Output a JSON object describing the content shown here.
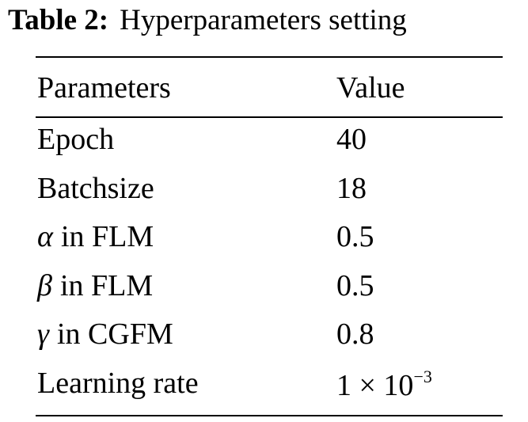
{
  "caption": {
    "label": "Table 2:",
    "text": "Hyperparameters setting"
  },
  "table": {
    "header": [
      "Parameters",
      "Value"
    ],
    "rows": [
      [
        {
          "text": "Epoch"
        },
        "40"
      ],
      [
        {
          "text": "Batchsize"
        },
        "18"
      ],
      [
        {
          "symbol": "α",
          "text": "in FLM"
        },
        "0.5"
      ],
      [
        {
          "symbol": "β",
          "text": "in FLM"
        },
        "0.5"
      ],
      [
        {
          "symbol": "γ",
          "text": "in CGFM"
        },
        "0.8"
      ],
      [
        {
          "text": "Learning rate"
        },
        {
          "base": "1 × 10",
          "exponent": "−3"
        }
      ]
    ]
  }
}
